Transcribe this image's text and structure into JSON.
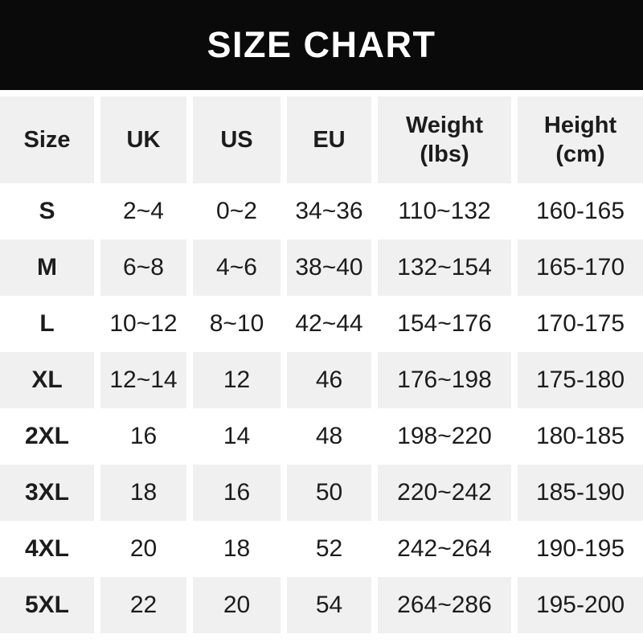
{
  "title": "SIZE CHART",
  "colors": {
    "title_bar_bg": "#0a0a0a",
    "title_text": "#ffffff",
    "row_alt_bg": "#f0f0f0",
    "row_bg": "#ffffff",
    "text": "#1c1c1e"
  },
  "chart_data": {
    "type": "table",
    "title": "SIZE CHART",
    "columns": [
      {
        "label": "Size",
        "sub": ""
      },
      {
        "label": "UK",
        "sub": ""
      },
      {
        "label": "US",
        "sub": ""
      },
      {
        "label": "EU",
        "sub": ""
      },
      {
        "label": "Weight",
        "sub": "(lbs)"
      },
      {
        "label": "Height",
        "sub": "(cm)"
      }
    ],
    "rows": [
      {
        "size": "S",
        "uk": "2~4",
        "us": "0~2",
        "eu": "34~36",
        "weight": "110~132",
        "height": "160-165"
      },
      {
        "size": "M",
        "uk": "6~8",
        "us": "4~6",
        "eu": "38~40",
        "weight": "132~154",
        "height": "165-170"
      },
      {
        "size": "L",
        "uk": "10~12",
        "us": "8~10",
        "eu": "42~44",
        "weight": "154~176",
        "height": "170-175"
      },
      {
        "size": "XL",
        "uk": "12~14",
        "us": "12",
        "eu": "46",
        "weight": "176~198",
        "height": "175-180"
      },
      {
        "size": "2XL",
        "uk": "16",
        "us": "14",
        "eu": "48",
        "weight": "198~220",
        "height": "180-185"
      },
      {
        "size": "3XL",
        "uk": "18",
        "us": "16",
        "eu": "50",
        "weight": "220~242",
        "height": "185-190"
      },
      {
        "size": "4XL",
        "uk": "20",
        "us": "18",
        "eu": "52",
        "weight": "242~264",
        "height": "190-195"
      },
      {
        "size": "5XL",
        "uk": "22",
        "us": "20",
        "eu": "54",
        "weight": "264~286",
        "height": "195-200"
      }
    ]
  }
}
